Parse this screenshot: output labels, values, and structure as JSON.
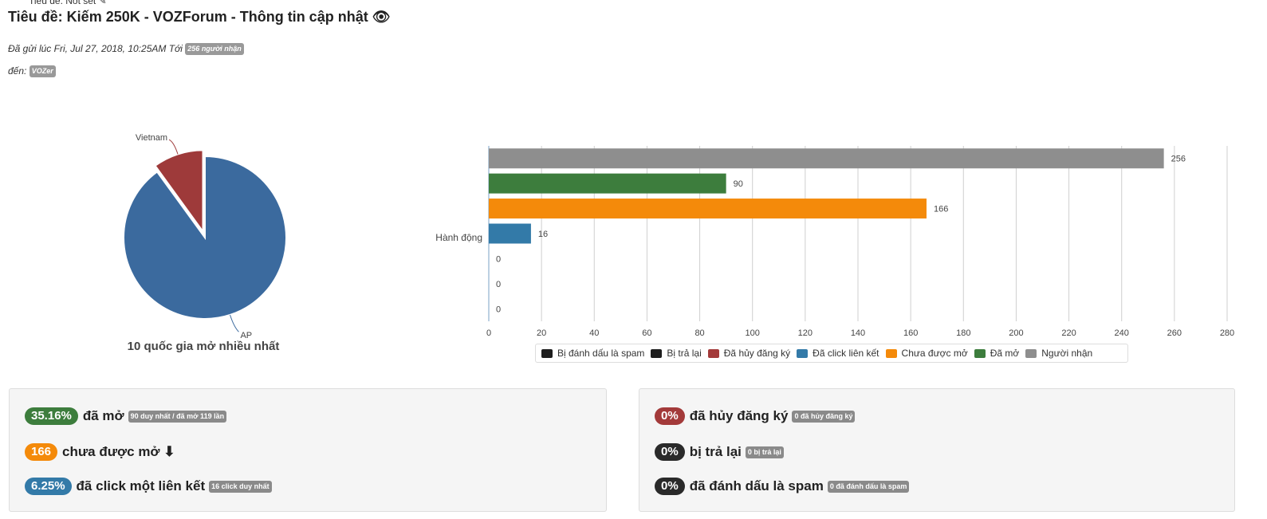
{
  "header": {
    "subject_top": "Tiêu đề: Not set ✎",
    "title": "Tiêu đề: Kiếm 250K - VOZForum - Thông tin cập nhật 👁",
    "sent_prefix": "Đã gửi lúc Fri, Jul 27, 2018, 10:25AM Tới",
    "recipients_badge": "256 người nhận",
    "to_prefix": "đến:",
    "to_badge": "VOZer"
  },
  "pie": {
    "caption": "10 quốc gia mở nhiều nhất",
    "slices": [
      {
        "label": "AP",
        "value": 90,
        "color": "#3b6a9e"
      },
      {
        "label": "Vietnam",
        "value": 10,
        "color": "#9e3a3a"
      }
    ]
  },
  "chart_data": {
    "type": "bar",
    "orientation": "horizontal",
    "category": "Hành động",
    "xlim": [
      0,
      280
    ],
    "xticks": [
      0,
      20,
      40,
      60,
      80,
      100,
      120,
      140,
      160,
      180,
      200,
      220,
      240,
      260,
      280
    ],
    "grid": true,
    "legend_position": "bottom",
    "series": [
      {
        "name": "Người nhận",
        "value": 256,
        "color": "#8e8e8e"
      },
      {
        "name": "Đã mở",
        "value": 90,
        "color": "#3d7d3d"
      },
      {
        "name": "Chưa được mở",
        "value": 166,
        "color": "#f48a0a"
      },
      {
        "name": "Đã click liên kết",
        "value": 16,
        "color": "#337aa8"
      },
      {
        "name": "Đã hủy đăng ký",
        "value": 0,
        "color": "#a33a3a"
      },
      {
        "name": "Bị trả lại",
        "value": 0,
        "color": "#1e1e1e"
      },
      {
        "name": "Bị đánh dấu là spam",
        "value": 0,
        "color": "#1e1e1e"
      }
    ],
    "legend": [
      {
        "name": "Bị đánh dấu là spam",
        "color": "#1e1e1e"
      },
      {
        "name": "Bị trả lại",
        "color": "#1e1e1e"
      },
      {
        "name": "Đã hủy đăng ký",
        "color": "#a33a3a"
      },
      {
        "name": "Đã click liên kết",
        "color": "#337aa8"
      },
      {
        "name": "Chưa được mở",
        "color": "#f48a0a"
      },
      {
        "name": "Đã mở",
        "color": "#3d7d3d"
      },
      {
        "name": "Người nhận",
        "color": "#8e8e8e"
      }
    ]
  },
  "stats_left": [
    {
      "pill": "35.16%",
      "pill_color": "#3d7d3d",
      "text": "đã mở",
      "small": "90 duy nhất / đã mở 119 lần"
    },
    {
      "pill": "166",
      "pill_color": "#f48a0a",
      "text": "chưa được mở ⬇︎",
      "small": ""
    },
    {
      "pill": "6.25%",
      "pill_color": "#337aa8",
      "text": "đã click một liên kết",
      "small": "16 click duy nhất"
    }
  ],
  "stats_right": [
    {
      "pill": "0%",
      "pill_color": "#a33a3a",
      "text": "đã hủy đăng ký",
      "small": "0 đã hủy đăng ký"
    },
    {
      "pill": "0%",
      "pill_color": "#2a2a2a",
      "text": "bị trả lại",
      "small": "0 bị trả lại"
    },
    {
      "pill": "0%",
      "pill_color": "#2a2a2a",
      "text": "đã đánh dấu là spam",
      "small": "0 đã đánh dấu là spam"
    }
  ]
}
